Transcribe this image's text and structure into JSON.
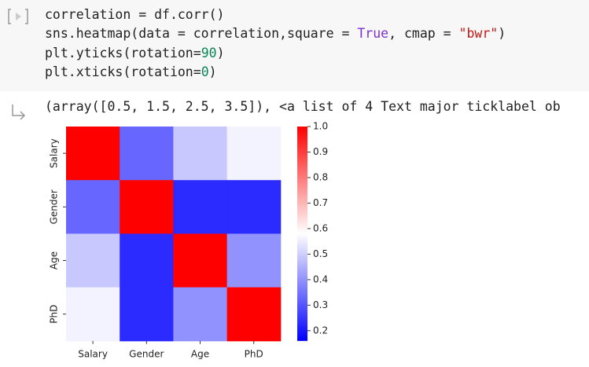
{
  "cell": {
    "code_lines": [
      [
        {
          "text": "correlation = df.corr()"
        }
      ],
      [
        {
          "text": "sns.heatmap(data = correlation,square = "
        },
        {
          "text": "True",
          "color": "#7b30d0"
        },
        {
          "text": ", cmap = "
        },
        {
          "text": "\"bwr\"",
          "color": "#c41a16"
        },
        {
          "text": ")"
        }
      ],
      [
        {
          "text": "plt.yticks(rotation="
        },
        {
          "text": "90",
          "color": "#098658"
        },
        {
          "text": ")"
        }
      ],
      [
        {
          "text": "plt.xticks(rotation="
        },
        {
          "text": "0",
          "color": "#098658"
        },
        {
          "text": ")"
        }
      ]
    ],
    "output": "(array([0.5, 1.5, 2.5, 3.5]), <a list of 4 Text major ticklabel ob"
  },
  "chart_data": {
    "type": "heatmap",
    "cmap": "bwr",
    "categories": [
      "Salary",
      "Gender",
      "Age",
      "PhD"
    ],
    "values": [
      [
        1,
        0.33,
        0.49,
        0.56
      ],
      [
        0.33,
        1,
        0.23,
        0.23
      ],
      [
        0.49,
        0.23,
        1,
        0.4
      ],
      [
        0.56,
        0.23,
        0.4,
        1
      ]
    ],
    "zlim": [
      0.16,
      1.0
    ],
    "zticks": [
      {
        "value": 1,
        "label": "1.0"
      },
      0.9,
      0.8,
      0.7,
      0.6,
      0.5,
      0.4,
      0.3,
      0.2
    ]
  }
}
